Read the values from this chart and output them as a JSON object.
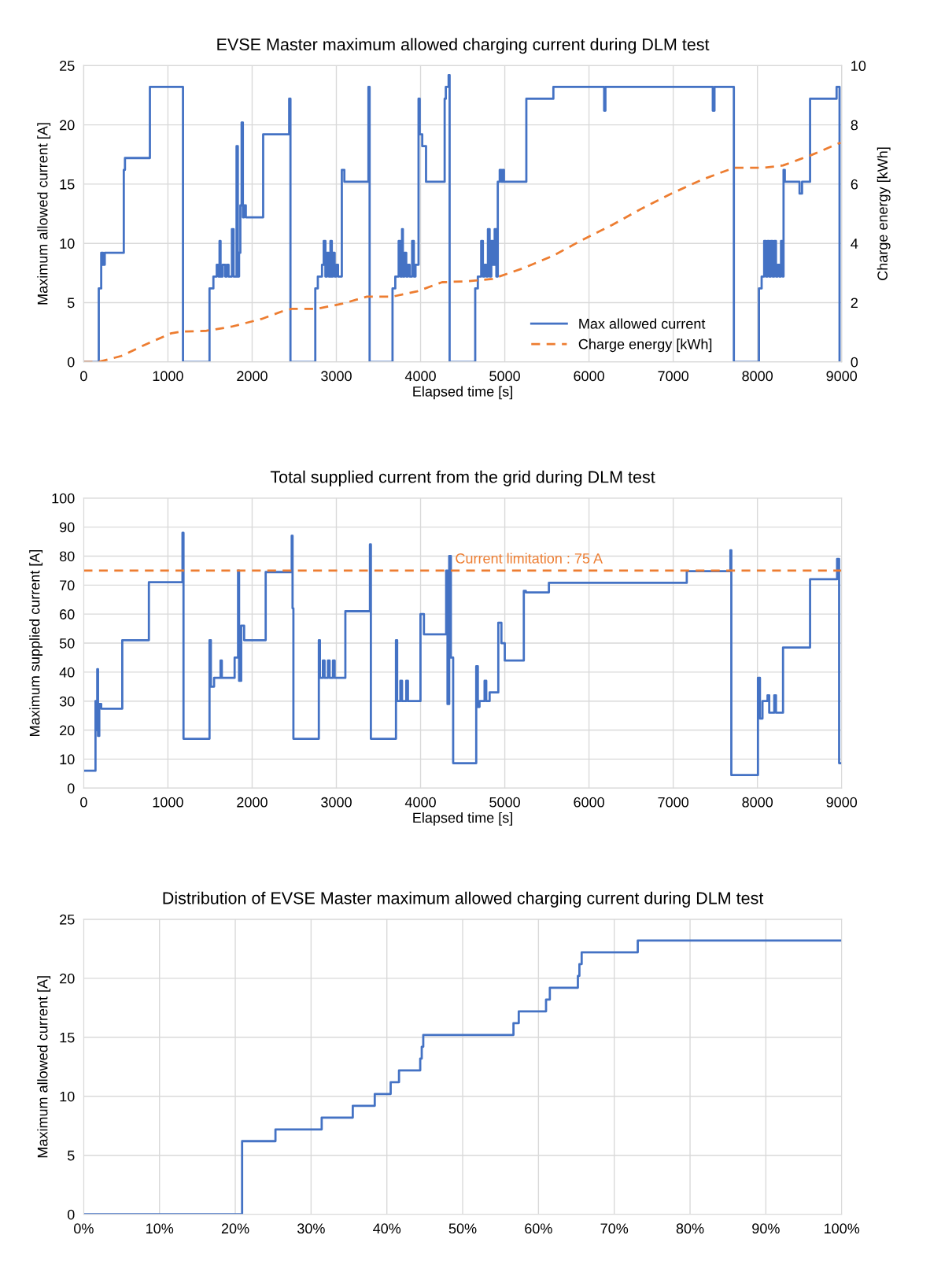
{
  "chart_data": [
    {
      "type": "step",
      "title": "EVSE Master maximum allowed charging current during DLM test",
      "xlabel": "Elapsed time [s]",
      "ylabel": "Maximum allowed current [A]",
      "y2label": "Charge energy [kWh]",
      "xlim": [
        0,
        9000
      ],
      "xticks": [
        0,
        1000,
        2000,
        3000,
        4000,
        5000,
        6000,
        7000,
        8000,
        9000
      ],
      "ylim": [
        0,
        25
      ],
      "yticks": [
        0,
        5,
        10,
        15,
        20,
        25
      ],
      "y2lim": [
        0,
        10
      ],
      "y2ticks": [
        0,
        2,
        4,
        6,
        8,
        10
      ],
      "grid": true,
      "legend": "bottom",
      "series": [
        {
          "name": "Max allowed current",
          "color": "#4472c4",
          "line_style": "solid",
          "x": [
            0,
            179,
            208,
            230,
            250,
            476,
            490,
            786,
            1179,
            1494,
            1540,
            1580,
            1600,
            1613,
            1625,
            1650,
            1680,
            1700,
            1720,
            1760,
            1780,
            1815,
            1830,
            1845,
            1860,
            1875,
            1890,
            1905,
            1925,
            2131,
            2440,
            2455,
            2750,
            2780,
            2830,
            2850,
            2870,
            2890,
            2910,
            2930,
            2946,
            2960,
            2980,
            3000,
            3020,
            3065,
            3095,
            3381,
            3395,
            3667,
            3700,
            3740,
            3760,
            3780,
            3790,
            3810,
            3830,
            3850,
            3870,
            3900,
            3920,
            3940,
            3976,
            3990,
            4020,
            4065,
            4286,
            4300,
            4333,
            4345,
            4649,
            4680,
            4720,
            4740,
            4760,
            4780,
            4800,
            4820,
            4840,
            4860,
            4880,
            4900,
            4917,
            4940,
            4960,
            4975,
            4990,
            5256,
            5577,
            6180,
            6195,
            7470,
            7490,
            7720,
            8018,
            8050,
            8080,
            8100,
            8120,
            8140,
            8160,
            8180,
            8200,
            8220,
            8240,
            8260,
            8280,
            8300,
            8310,
            8325,
            8500,
            8530,
            8625,
            8940,
            8975
          ],
          "values": [
            0,
            6.2,
            9.2,
            8.2,
            9.2,
            16.2,
            17.2,
            23.2,
            0,
            6.2,
            7.2,
            8.2,
            7.2,
            10.2,
            7.2,
            8.2,
            7.2,
            8.2,
            7.2,
            11.2,
            7.2,
            18.2,
            7.2,
            9.2,
            13.2,
            20.2,
            12.2,
            13.2,
            12.2,
            19.2,
            22.2,
            0,
            6.2,
            7.2,
            8.2,
            10.2,
            7.2,
            9.2,
            7.2,
            10.2,
            7.2,
            9.2,
            7.2,
            8.2,
            7.2,
            16.2,
            15.2,
            23.2,
            0,
            6.2,
            7.2,
            10.2,
            7.2,
            11.2,
            7.2,
            9.2,
            7.2,
            8.2,
            7.2,
            10.2,
            7.2,
            8.2,
            22.2,
            19.2,
            18.2,
            15.2,
            22.2,
            23.2,
            24.2,
            0,
            6.2,
            7.2,
            10.2,
            7.2,
            8.2,
            7.2,
            11.2,
            7.2,
            10.2,
            8.2,
            11.2,
            7.2,
            15.2,
            16.2,
            15.2,
            16.2,
            15.2,
            22.2,
            23.2,
            21.2,
            23.2,
            21.2,
            23.2,
            0,
            6.2,
            7.2,
            10.2,
            7.2,
            10.2,
            7.2,
            10.2,
            7.2,
            10.2,
            7.2,
            8.2,
            7.2,
            10.2,
            7.2,
            16.2,
            15.2,
            14.2,
            15.2,
            22.2,
            23.2,
            0
          ]
        },
        {
          "name": "Charge energy [kWh]",
          "type": "line",
          "axis": "y2",
          "color": "#ed7d31",
          "line_style": "dashed",
          "x": [
            0,
            179,
            446,
            744,
            1042,
            1161,
            1458,
            1756,
            2113,
            2351,
            2470,
            2768,
            3065,
            3363,
            3661,
            3958,
            4256,
            4554,
            4851,
            5208,
            5565,
            5923,
            6280,
            6637,
            6994,
            7351,
            7720,
            8065,
            8304,
            8631,
            8988
          ],
          "values": [
            0,
            0,
            0.2,
            0.6,
            0.97,
            1.02,
            1.05,
            1.19,
            1.45,
            1.7,
            1.79,
            1.79,
            1.96,
            2.2,
            2.2,
            2.38,
            2.69,
            2.72,
            2.8,
            3.15,
            3.57,
            4.12,
            4.63,
            5.19,
            5.7,
            6.16,
            6.55,
            6.55,
            6.63,
            6.97,
            7.4
          ]
        }
      ]
    },
    {
      "type": "step",
      "title": "Total supplied current from the grid during DLM test",
      "xlabel": "Elapsed time [s]",
      "ylabel": "Maximum supplied current [A]",
      "xlim": [
        0,
        9000
      ],
      "xticks": [
        0,
        1000,
        2000,
        3000,
        4000,
        5000,
        6000,
        7000,
        8000,
        9000
      ],
      "ylim": [
        0,
        100
      ],
      "yticks": [
        0,
        10,
        20,
        30,
        40,
        50,
        60,
        70,
        80,
        90,
        100
      ],
      "grid": true,
      "ref_lines": [
        {
          "axis": "y",
          "value": 75,
          "label": "Current limitation : 75 A",
          "color": "#ed7d31",
          "line_style": "dashed"
        }
      ],
      "series": [
        {
          "color": "#4472c4",
          "x": [
            0,
            137,
            140,
            150,
            161,
            170,
            185,
            208,
            458,
            774,
            1173,
            1185,
            1494,
            1510,
            1548,
            1625,
            1640,
            1792,
            1833,
            1845,
            1870,
            1905,
            2161,
            2470,
            2480,
            2490,
            2792,
            2805,
            2840,
            2860,
            2900,
            2920,
            2960,
            2980,
            3107,
            3399,
            3410,
            3708,
            3722,
            3760,
            3780,
            3830,
            3850,
            3999,
            4040,
            4304,
            4320,
            4340,
            4360,
            4387,
            4661,
            4680,
            4700,
            4760,
            4780,
            4820,
            4923,
            4960,
            5000,
            5226,
            5250,
            5524,
            7161,
            7679,
            7690,
            8006,
            8030,
            8060,
            8120,
            8140,
            8200,
            8220,
            8304,
            8625,
            8946,
            8970,
            9000
          ],
          "values": [
            6,
            6,
            30,
            20,
            41,
            18,
            29,
            27.4,
            51,
            71,
            88,
            17,
            51,
            35,
            38,
            44,
            38,
            45,
            75,
            37,
            56,
            51,
            74.5,
            87,
            62,
            17,
            51,
            38,
            44,
            38,
            44,
            38,
            44,
            38,
            61,
            84,
            17,
            51,
            30,
            37,
            30,
            37,
            30,
            60,
            53,
            75,
            29,
            80,
            45,
            8.6,
            42,
            28,
            30,
            37,
            30,
            33,
            57,
            50,
            44,
            68,
            67.5,
            70.8,
            74.8,
            82,
            4.5,
            38,
            24,
            30,
            32,
            26,
            32,
            26,
            48.5,
            72,
            79,
            8.6,
            8.6
          ]
        }
      ]
    },
    {
      "type": "step",
      "title": "Distribution of EVSE Master maximum allowed charging current during DLM test",
      "ylabel": "Maximum allowed current [A]",
      "xlim": [
        0,
        100
      ],
      "xticks": [
        {
          "value": 0,
          "label": "0%"
        },
        {
          "value": 10,
          "label": "10%"
        },
        {
          "value": 20,
          "label": "20%"
        },
        {
          "value": 30,
          "label": "30%"
        },
        {
          "value": 40,
          "label": "40%"
        },
        {
          "value": 50,
          "label": "50%"
        },
        {
          "value": 60,
          "label": "60%"
        },
        {
          "value": 70,
          "label": "70%"
        },
        {
          "value": 80,
          "label": "80%"
        },
        {
          "value": 90,
          "label": "90%"
        },
        {
          "value": 100,
          "label": "100%"
        }
      ],
      "ylim": [
        0,
        25
      ],
      "yticks": [
        0,
        5,
        10,
        15,
        20,
        25
      ],
      "grid": true,
      "series": [
        {
          "color": "#4472c4",
          "x": [
            0,
            20.9,
            25.3,
            31.4,
            35.5,
            38.4,
            40.5,
            41.6,
            44.4,
            44.6,
            44.8,
            56.7,
            57.4,
            61.0,
            61.5,
            65.2,
            65.4,
            65.7,
            73.1,
            100
          ],
          "values": [
            0,
            6.2,
            7.2,
            8.2,
            9.2,
            10.2,
            11.2,
            12.2,
            13.2,
            14.2,
            15.2,
            16.2,
            17.2,
            18.2,
            19.2,
            20.2,
            21.2,
            22.2,
            23.2,
            23.2
          ]
        }
      ]
    }
  ]
}
